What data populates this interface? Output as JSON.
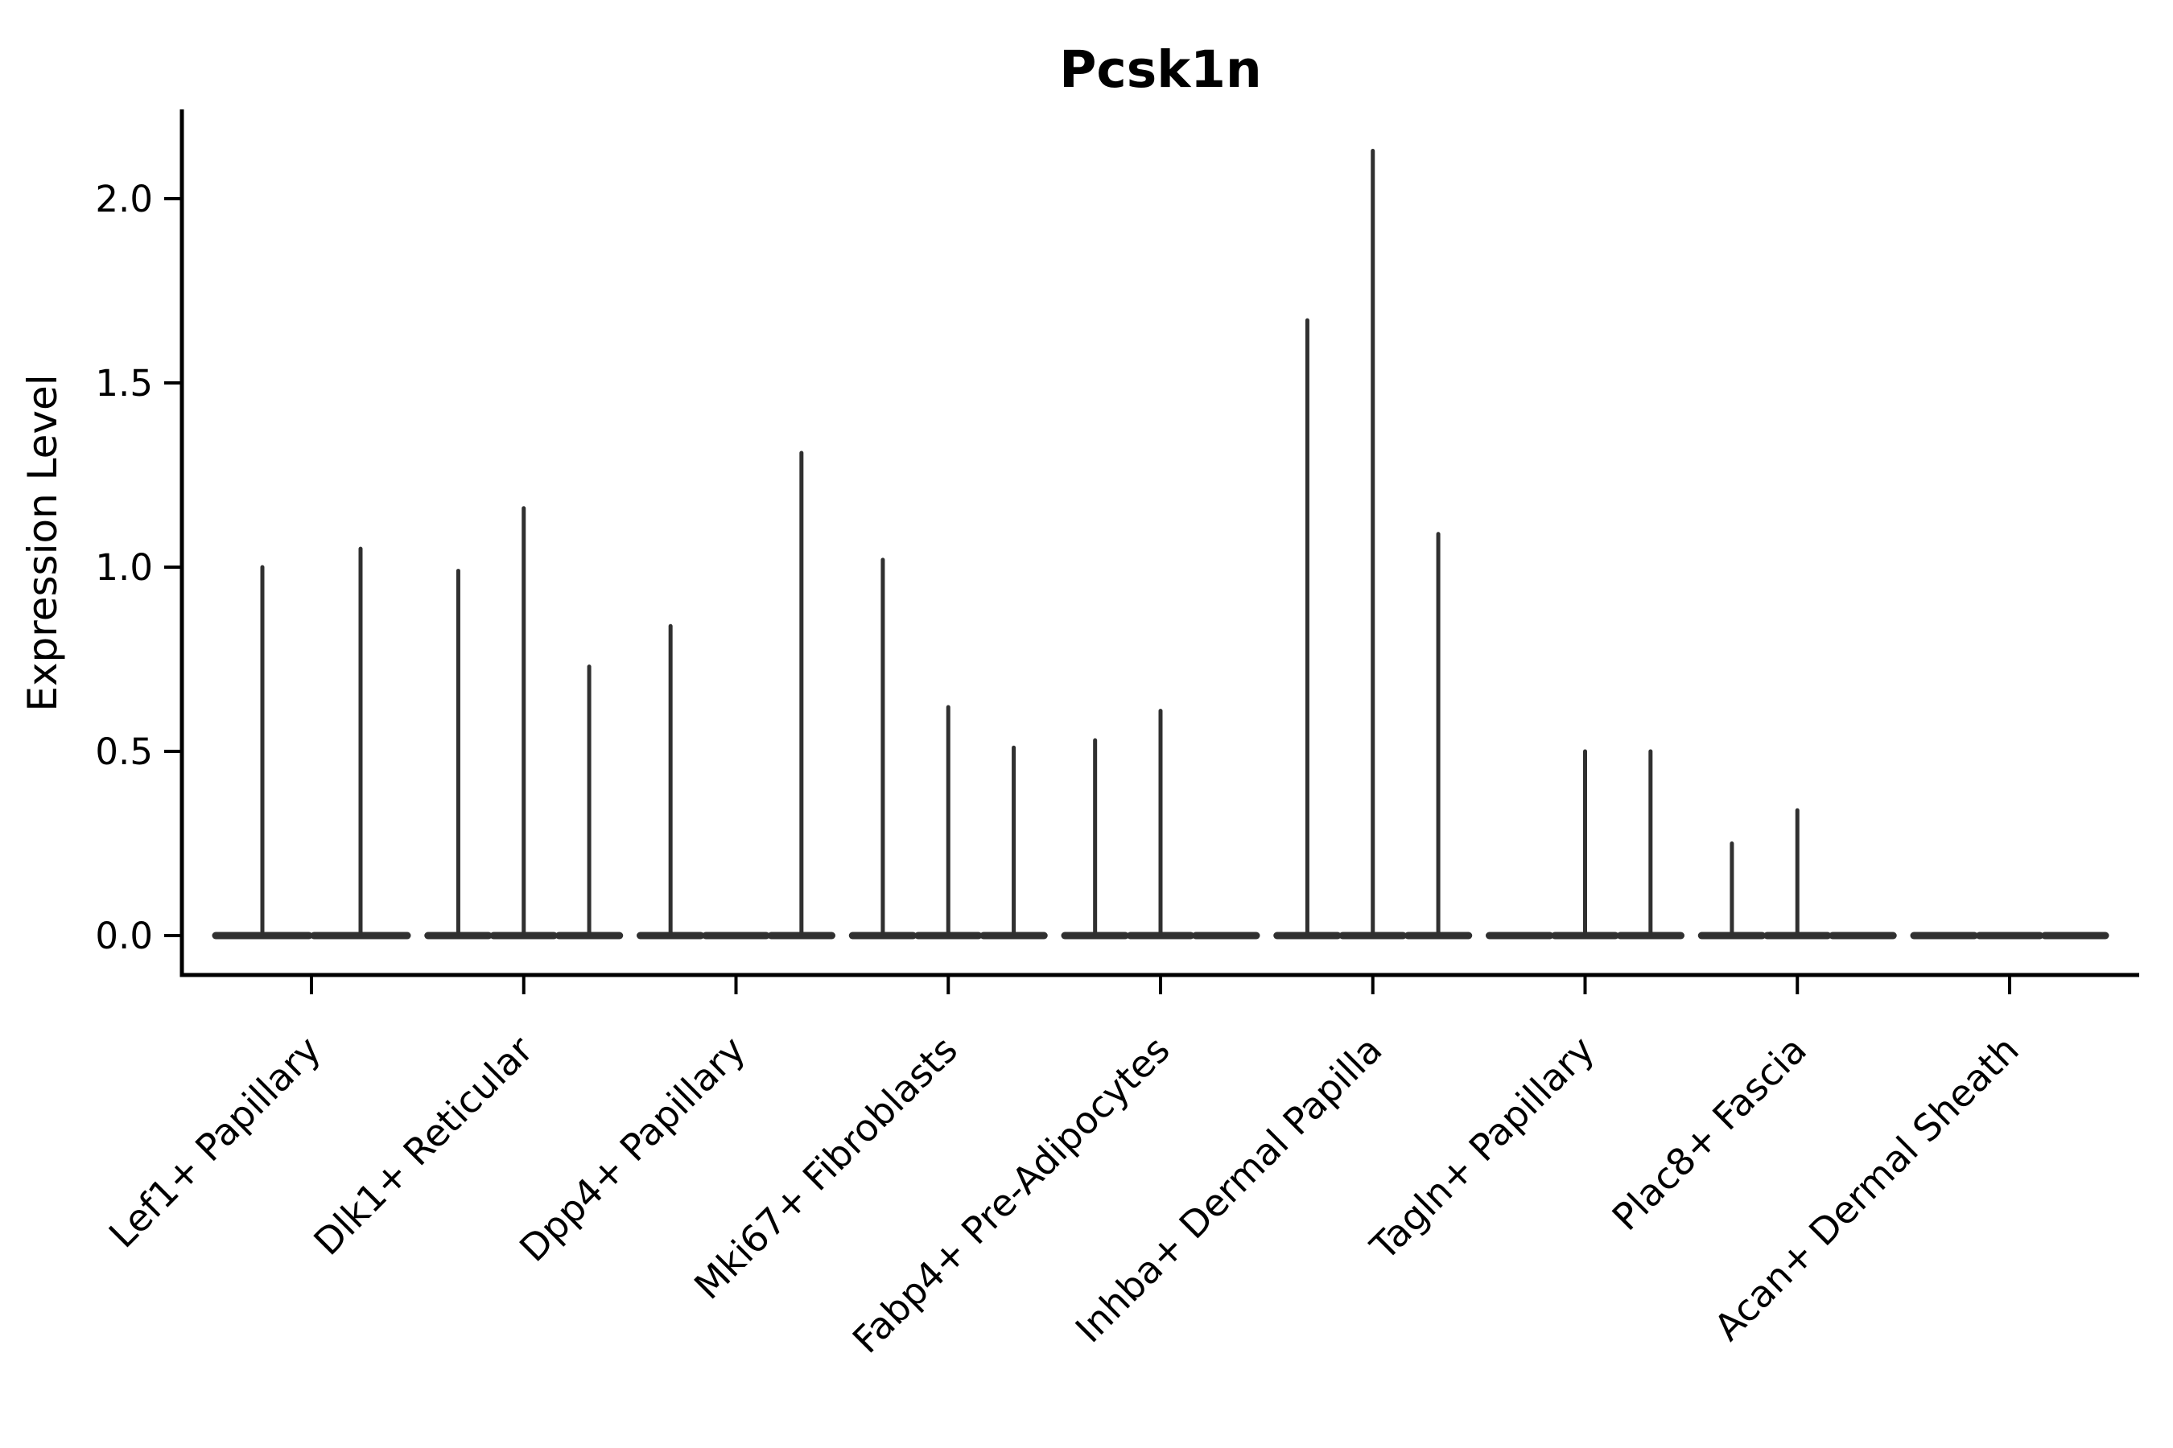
{
  "title": "Pcsk1n",
  "ylabel": "Expression Level",
  "colors": {
    "violin": "#303030",
    "axis": "#000000",
    "background": "#ffffff"
  },
  "chart_data": {
    "type": "violin",
    "title": "Pcsk1n",
    "xlabel": "",
    "ylabel": "Expression Level",
    "ylim": [
      -0.107,
      2.237
    ],
    "yticks": [
      0.0,
      0.5,
      1.0,
      1.5,
      2.0
    ],
    "ytick_labels": [
      "0.0",
      "0.5",
      "1.0",
      "1.5",
      "2.0"
    ],
    "grid": false,
    "legend": false,
    "xtick_rotation_deg": 45,
    "description": "Sparse single-cell expression violins: each violin collapses to a wide flat base at 0 with a thin central spike reaching its maximum expression value.",
    "categories": [
      "Lef1+ Papillary",
      "Dlk1+ Reticular",
      "Dpp4+ Papillary",
      "Mki67+ Fibroblasts",
      "Fabp4+ Pre-Adipocytes",
      "Inhba+ Dermal Papilla",
      "Tagln+ Papillary",
      "Plac8+ Fascia",
      "Acan+ Dermal Sheath"
    ],
    "groups": [
      {
        "category": "Lef1+ Papillary",
        "violin_peaks": [
          1.0,
          1.05
        ]
      },
      {
        "category": "Dlk1+ Reticular",
        "violin_peaks": [
          0.99,
          1.16,
          0.73
        ]
      },
      {
        "category": "Dpp4+ Papillary",
        "violin_peaks": [
          0.84,
          0.0,
          1.31
        ]
      },
      {
        "category": "Mki67+ Fibroblasts",
        "violin_peaks": [
          1.02,
          0.62,
          0.51
        ]
      },
      {
        "category": "Fabp4+ Pre-Adipocytes",
        "violin_peaks": [
          0.53,
          0.61,
          0.0
        ]
      },
      {
        "category": "Inhba+ Dermal Papilla",
        "violin_peaks": [
          1.67,
          2.13,
          1.09
        ]
      },
      {
        "category": "Tagln+ Papillary",
        "violin_peaks": [
          0.0,
          0.5,
          0.5
        ]
      },
      {
        "category": "Plac8+ Fascia",
        "violin_peaks": [
          0.25,
          0.34,
          0.0
        ]
      },
      {
        "category": "Acan+ Dermal Sheath",
        "violin_peaks": [
          0.0,
          0.0,
          0.0
        ]
      }
    ]
  }
}
